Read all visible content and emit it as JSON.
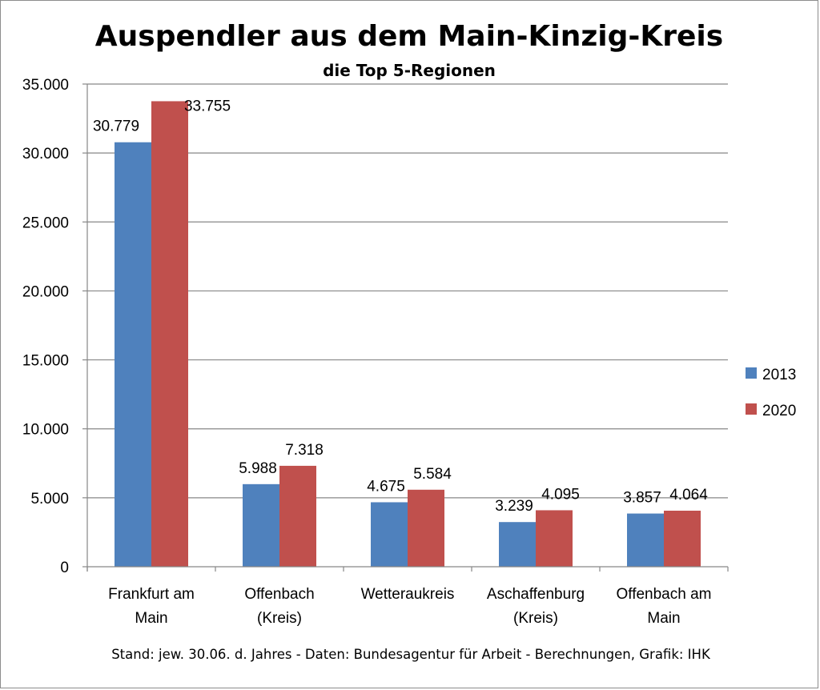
{
  "chart_data": {
    "type": "bar",
    "title": "Auspendler aus dem Main-Kinzig-Kreis",
    "subtitle": "die Top 5-Regionen",
    "categories": [
      [
        "Frankfurt am",
        "Main"
      ],
      [
        "Offenbach",
        "(Kreis)"
      ],
      [
        "Wetteraukreis"
      ],
      [
        "Aschaffenburg",
        "(Kreis)"
      ],
      [
        "Offenbach am",
        "Main"
      ]
    ],
    "series": [
      {
        "name": "2013",
        "color": "#4f81bd",
        "values": [
          30779,
          5988,
          4675,
          3239,
          3857
        ],
        "labels": [
          "30.779",
          "5.988",
          "4.675",
          "3.239",
          "3.857"
        ]
      },
      {
        "name": "2020",
        "color": "#c0504d",
        "values": [
          33755,
          7318,
          5584,
          4095,
          4064
        ],
        "labels": [
          "33.755",
          "7.318",
          "5.584",
          "4.095",
          "4.064"
        ]
      }
    ],
    "ylim": [
      0,
      35000
    ],
    "yticks": [
      0,
      5000,
      10000,
      15000,
      20000,
      25000,
      30000,
      35000
    ],
    "ytick_labels": [
      "0",
      "5.000",
      "10.000",
      "15.000",
      "20.000",
      "25.000",
      "30.000",
      "35.000"
    ],
    "grid": true,
    "legend_position": "right",
    "source": "Stand: jew. 30.06. d. Jahres - Daten: Bundesagentur für Arbeit - Berechnungen, Grafik: IHK"
  }
}
